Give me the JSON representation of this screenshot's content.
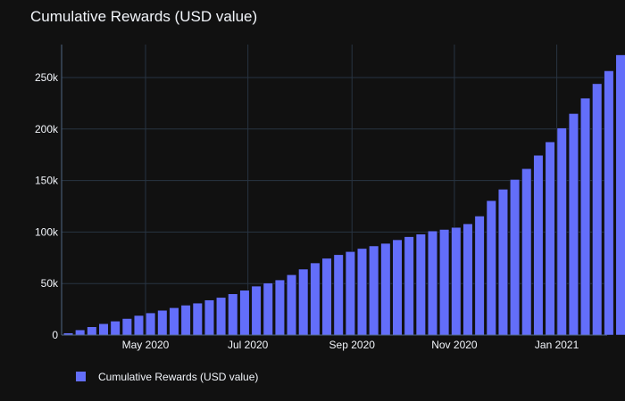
{
  "chart_data": {
    "type": "bar",
    "title": "Cumulative Rewards (USD value)",
    "xlabel": "",
    "ylabel": "",
    "series_name": "Cumulative Rewards (USD value)",
    "bar_color": "#636efa",
    "background_color": "#111111",
    "grid_color": "#283442",
    "x_start": "2020-03-16",
    "interval_days": 7,
    "xlim": [
      "2020-03-12",
      "2021-01-31"
    ],
    "ylim": [
      0,
      282000
    ],
    "yticks": [
      0,
      50000,
      100000,
      150000,
      200000,
      250000
    ],
    "ytick_labels": [
      "0",
      "50k",
      "100k",
      "150k",
      "200k",
      "250k"
    ],
    "xticks": [
      "2020-05-01",
      "2020-07-01",
      "2020-09-01",
      "2020-11-01",
      "2021-01-01"
    ],
    "xtick_labels": [
      "May 2020",
      "Jul 2020",
      "Sep 2020",
      "Nov 2020",
      "Jan 2021"
    ],
    "values": [
      2000,
      5000,
      8000,
      11000,
      13500,
      16000,
      19000,
      21500,
      24000,
      26500,
      29000,
      31000,
      34000,
      36500,
      40000,
      43500,
      47500,
      50500,
      53500,
      58500,
      64000,
      70000,
      74500,
      78000,
      81000,
      84000,
      86500,
      89000,
      92500,
      95500,
      98000,
      101000,
      102500,
      104500,
      108000,
      115500,
      130500,
      141500,
      151000,
      161500,
      174500,
      187500,
      201000,
      215000,
      230000,
      244000,
      256500,
      272000
    ],
    "legend": {
      "position": "bottom-left",
      "entries": [
        "Cumulative Rewards (USD value)"
      ]
    }
  }
}
